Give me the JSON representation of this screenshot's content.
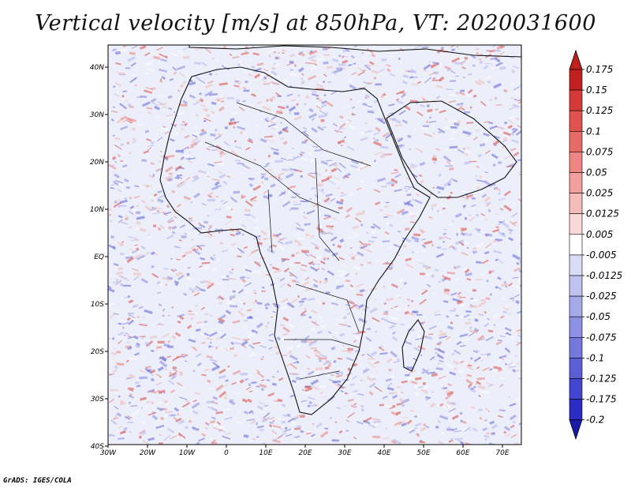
{
  "title": "Vertical velocity [m/s] at 850hPa, VT: 2020031600",
  "footer": "GrADS: IGES/COLA",
  "map": {
    "lon_ticks": [
      "30W",
      "20W",
      "10W",
      "0",
      "10E",
      "20E",
      "30E",
      "40E",
      "50E",
      "60E",
      "70E"
    ],
    "lat_ticks": [
      "40N",
      "30N",
      "20N",
      "10N",
      "EQ",
      "10S",
      "20S",
      "30S",
      "40S"
    ]
  },
  "colorbar": {
    "labels": [
      "0.175",
      "0.15",
      "0.125",
      "0.1",
      "0.075",
      "0.05",
      "0.025",
      "0.0125",
      "0.005",
      "-0.005",
      "-0.0125",
      "-0.025",
      "-0.05",
      "-0.075",
      "-0.1",
      "-0.125",
      "-0.175",
      "-0.2"
    ],
    "colors": [
      "#c0201e",
      "#d53a36",
      "#e0524e",
      "#e86a66",
      "#ef8582",
      "#f39f9c",
      "#f7bcba",
      "#fad8d7",
      "#ffffff",
      "#d9dcf6",
      "#bfc2f0",
      "#a6a9ea",
      "#8d90e3",
      "#7477dc",
      "#5b5ed5",
      "#4245cd",
      "#2a2cc4",
      "#1a1ca8"
    ]
  }
}
